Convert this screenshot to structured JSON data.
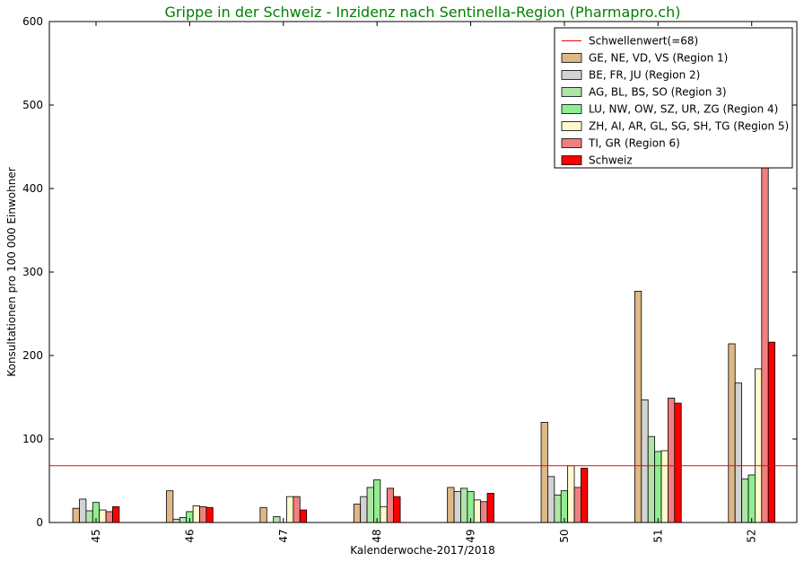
{
  "chart_data": {
    "type": "bar",
    "title": "Grippe in der Schweiz - Inzidenz nach Sentinella-Region (Pharmapro.ch)",
    "title_color": "#008000",
    "xlabel": "Kalenderwoche-2017/2018",
    "ylabel": "Konsultationen pro 100 000 Einwohner",
    "ylim": [
      0,
      600
    ],
    "yticks": [
      "0",
      "100",
      "200",
      "300",
      "400",
      "500",
      "600"
    ],
    "categories": [
      "45",
      "46",
      "47",
      "48",
      "49",
      "50",
      "51",
      "52"
    ],
    "threshold": {
      "name": "Schwellenwert(=68)",
      "value": 68,
      "color": "#ff0000"
    },
    "series": [
      {
        "name": "GE, NE, VD, VS (Region 1)",
        "color": "#deb887",
        "values": [
          17,
          38,
          18,
          22,
          42,
          120,
          277,
          214
        ]
      },
      {
        "name": "BE, FR, JU (Region 2)",
        "color": "#d3d3d3",
        "values": [
          28,
          4,
          0,
          31,
          37,
          55,
          147,
          167
        ]
      },
      {
        "name": "AG, BL, BS, SO (Region 3)",
        "color": "#b0e4a8",
        "values": [
          14,
          6,
          7,
          42,
          41,
          33,
          103,
          52
        ]
      },
      {
        "name": "LU, NW, OW, SZ, UR, ZG (Region 4)",
        "color": "#90ee90",
        "values": [
          24,
          13,
          0,
          51,
          37,
          38,
          85,
          57
        ]
      },
      {
        "name": "ZH, AI, AR, GL, SG, SH, TG (Region 5)",
        "color": "#fffacd",
        "values": [
          15,
          20,
          31,
          19,
          27,
          68,
          86,
          184
        ]
      },
      {
        "name": "TI, GR (Region 6)",
        "color": "#f08080",
        "values": [
          13,
          19,
          31,
          41,
          25,
          42,
          149,
          430
        ]
      },
      {
        "name": "Schweiz",
        "color": "#ff0000",
        "values": [
          19,
          18,
          15,
          31,
          35,
          65,
          143,
          216
        ]
      }
    ],
    "legend_position": "top-right",
    "grid": false
  }
}
